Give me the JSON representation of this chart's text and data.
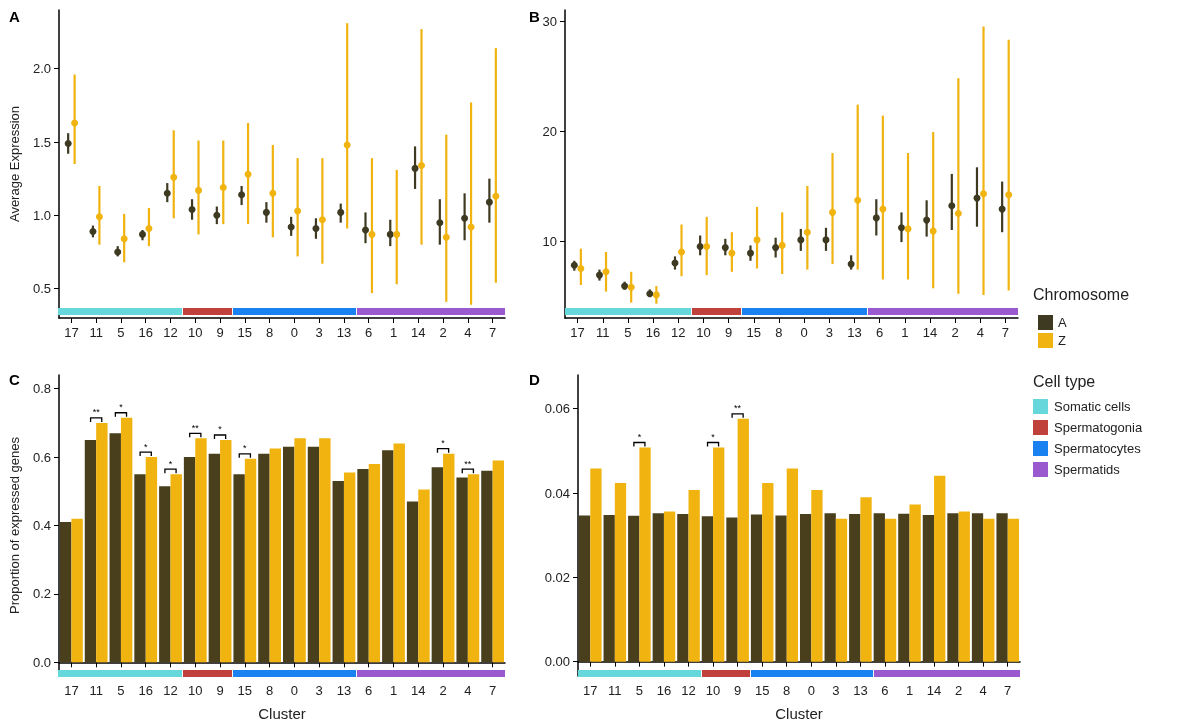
{
  "chart_data": [
    {
      "type": "scatter",
      "title": "A",
      "ylabel": "Average Expression",
      "marker": "circle",
      "categories": [
        "17",
        "11",
        "5",
        "16",
        "12",
        "10",
        "9",
        "15",
        "8",
        "0",
        "3",
        "13",
        "6",
        "1",
        "14",
        "2",
        "4",
        "7"
      ],
      "ylim": [
        0.3,
        2.4
      ],
      "yticks": [
        0.5,
        {
          "value": 1,
          "label": "1.0"
        },
        1.5,
        {
          "value": 2,
          "label": "2.0"
        }
      ],
      "series": [
        {
          "color": "#3e3a22",
          "values": [
            1.49,
            0.89,
            0.75,
            0.87,
            1.15,
            1.04,
            1.0,
            1.14,
            1.02,
            0.92,
            0.91,
            1.02,
            0.9,
            0.87,
            1.32,
            0.95,
            0.98,
            1.09
          ],
          "errors": [
            [
              1.42,
              1.56
            ],
            [
              0.85,
              0.93
            ],
            [
              0.72,
              0.79
            ],
            [
              0.83,
              0.9
            ],
            [
              1.09,
              1.22
            ],
            [
              0.97,
              1.11
            ],
            [
              0.94,
              1.06
            ],
            [
              1.07,
              1.2
            ],
            [
              0.95,
              1.09
            ],
            [
              0.86,
              0.99
            ],
            [
              0.84,
              0.98
            ],
            [
              0.95,
              1.08
            ],
            [
              0.81,
              1.02
            ],
            [
              0.79,
              0.97
            ],
            [
              1.18,
              1.47
            ],
            [
              0.8,
              1.11
            ],
            [
              0.83,
              1.15
            ],
            [
              0.95,
              1.25
            ]
          ]
        },
        {
          "color": "#f0b30f",
          "values": [
            1.63,
            0.99,
            0.84,
            0.91,
            1.26,
            1.17,
            1.19,
            1.28,
            1.15,
            1.03,
            0.97,
            1.48,
            0.87,
            0.87,
            1.34,
            0.85,
            0.92,
            1.13
          ],
          "errors": [
            [
              1.35,
              1.96
            ],
            [
              0.8,
              1.2
            ],
            [
              0.68,
              1.01
            ],
            [
              0.79,
              1.05
            ],
            [
              0.98,
              1.58
            ],
            [
              0.87,
              1.51
            ],
            [
              0.94,
              1.51
            ],
            [
              0.94,
              1.63
            ],
            [
              0.85,
              1.48
            ],
            [
              0.72,
              1.39
            ],
            [
              0.67,
              1.39
            ],
            [
              0.91,
              2.31
            ],
            [
              0.47,
              1.39
            ],
            [
              0.53,
              1.31
            ],
            [
              0.8,
              2.27
            ],
            [
              0.41,
              1.55
            ],
            [
              0.39,
              1.77
            ],
            [
              0.54,
              2.14
            ]
          ]
        }
      ]
    },
    {
      "type": "scatter",
      "title": "B",
      "marker": "circle",
      "legend": "right",
      "legend_title": "Chromosome",
      "categories": [
        "17",
        "11",
        "5",
        "16",
        "12",
        "10",
        "9",
        "15",
        "8",
        "0",
        "3",
        "13",
        "6",
        "1",
        "14",
        "2",
        "4",
        "7"
      ],
      "ylim": [
        3,
        31
      ],
      "yticks": [
        10,
        20,
        30
      ],
      "series": [
        {
          "name": "A",
          "color": "#3e3a22",
          "values": [
            7.8,
            6.9,
            5.9,
            5.2,
            8.0,
            9.5,
            9.4,
            8.9,
            9.4,
            10.1,
            10.1,
            7.9,
            12.1,
            11.2,
            11.9,
            13.2,
            13.9,
            12.9
          ],
          "errors": [
            [
              7.3,
              8.2
            ],
            [
              6.4,
              7.4
            ],
            [
              5.6,
              6.3
            ],
            [
              5.0,
              5.6
            ],
            [
              7.4,
              8.6
            ],
            [
              8.7,
              10.5
            ],
            [
              8.7,
              10.2
            ],
            [
              8.2,
              9.6
            ],
            [
              8.5,
              10.3
            ],
            [
              9.1,
              11.1
            ],
            [
              9.1,
              11.2
            ],
            [
              7.4,
              8.7
            ],
            [
              10.5,
              13.8
            ],
            [
              9.9,
              12.6
            ],
            [
              10.4,
              13.7
            ],
            [
              11.0,
              16.1
            ],
            [
              11.3,
              16.7
            ],
            [
              10.8,
              15.4
            ]
          ]
        },
        {
          "name": "Z",
          "color": "#f0b30f",
          "values": [
            7.5,
            7.2,
            5.8,
            5.1,
            9.0,
            9.5,
            8.9,
            10.1,
            9.6,
            10.8,
            12.6,
            13.7,
            12.9,
            11.1,
            10.9,
            12.5,
            14.3,
            14.2
          ],
          "errors": [
            [
              6.0,
              9.3
            ],
            [
              5.4,
              9.0
            ],
            [
              4.4,
              7.2
            ],
            [
              4.3,
              5.9
            ],
            [
              6.8,
              11.5
            ],
            [
              6.9,
              12.2
            ],
            [
              7.2,
              10.8
            ],
            [
              7.5,
              13.1
            ],
            [
              7.0,
              12.6
            ],
            [
              7.4,
              15.0
            ],
            [
              7.9,
              18.0
            ],
            [
              7.4,
              22.4
            ],
            [
              6.5,
              21.4
            ],
            [
              6.5,
              18.0
            ],
            [
              5.7,
              19.9
            ],
            [
              5.2,
              24.8
            ],
            [
              5.1,
              29.5
            ],
            [
              5.5,
              28.3
            ]
          ]
        }
      ]
    },
    {
      "type": "bar",
      "title": "C",
      "xlabel": "Cluster",
      "ylabel": "Proportion of expressed genes",
      "categories": [
        "17",
        "11",
        "5",
        "16",
        "12",
        "10",
        "9",
        "15",
        "8",
        "0",
        "3",
        "13",
        "6",
        "1",
        "14",
        "2",
        "4",
        "7"
      ],
      "ylim": [
        -0.04,
        0.84
      ],
      "yticks": [
        {
          "value": 0,
          "label": "0.0"
        },
        0.2,
        0.4,
        0.6,
        0.8
      ],
      "series": [
        {
          "color": "#4a3f1c",
          "values": [
            0.41,
            0.65,
            0.67,
            0.55,
            0.515,
            0.6,
            0.61,
            0.55,
            0.61,
            0.63,
            0.63,
            0.53,
            0.565,
            0.62,
            0.47,
            0.57,
            0.54,
            0.56
          ]
        },
        {
          "color": "#f0b30f",
          "values": [
            0.42,
            0.7,
            0.715,
            0.6,
            0.55,
            0.655,
            0.65,
            0.595,
            0.625,
            0.655,
            0.655,
            0.555,
            0.58,
            0.64,
            0.505,
            0.61,
            0.55,
            0.59
          ]
        }
      ],
      "annotations": [
        {
          "text": "**",
          "x": "11",
          "y": 0.7
        },
        {
          "text": "*",
          "x": "5",
          "y": 0.715
        },
        {
          "text": "*",
          "x": "16",
          "y": 0.6
        },
        {
          "text": "*",
          "x": "12",
          "y": 0.55
        },
        {
          "text": "**",
          "x": "10",
          "y": 0.655
        },
        {
          "text": "*",
          "x": "9",
          "y": 0.65
        },
        {
          "text": "*",
          "x": "15",
          "y": 0.595
        },
        {
          "text": "*",
          "x": "2",
          "y": 0.61
        },
        {
          "text": "**",
          "x": "4",
          "y": 0.55
        }
      ]
    },
    {
      "type": "bar",
      "title": "D",
      "xlabel": "Cluster",
      "categories": [
        "17",
        "11",
        "5",
        "16",
        "12",
        "10",
        "9",
        "15",
        "8",
        "0",
        "3",
        "13",
        "6",
        "1",
        "14",
        "2",
        "4",
        "7"
      ],
      "ylim": [
        -0.0034,
        0.068
      ],
      "yticks": [
        {
          "value": 0,
          "label": "0.00"
        },
        0.02,
        0.04,
        0.06
      ],
      "series": [
        {
          "color": "#4a3f1c",
          "values": [
            0.0347,
            0.0348,
            0.0346,
            0.0352,
            0.035,
            0.0345,
            0.0342,
            0.0349,
            0.0347,
            0.035,
            0.0352,
            0.035,
            0.0352,
            0.0351,
            0.0348,
            0.0352,
            0.0352,
            0.0352
          ]
        },
        {
          "color": "#f0b30f",
          "values": [
            0.0458,
            0.0424,
            0.0508,
            0.0356,
            0.0407,
            0.0508,
            0.0576,
            0.0424,
            0.0458,
            0.0407,
            0.0339,
            0.039,
            0.0339,
            0.0373,
            0.0441,
            0.0356,
            0.0339,
            0.0339
          ]
        }
      ],
      "annotations": [
        {
          "text": "*",
          "x": "5",
          "y": 0.0508
        },
        {
          "text": "*",
          "x": "10",
          "y": 0.0508
        },
        {
          "text": "**",
          "x": "9",
          "y": 0.0576
        }
      ]
    },
    {
      "type": "other",
      "legend_title": "Cell type",
      "categories": [
        "Somatic cells",
        "Spermatogonia",
        "Spermatocytes",
        "Spermatids"
      ],
      "colors": [
        "#66d8dc",
        "#c0403c",
        "#1a82f0",
        "#9b59d0"
      ]
    }
  ]
}
